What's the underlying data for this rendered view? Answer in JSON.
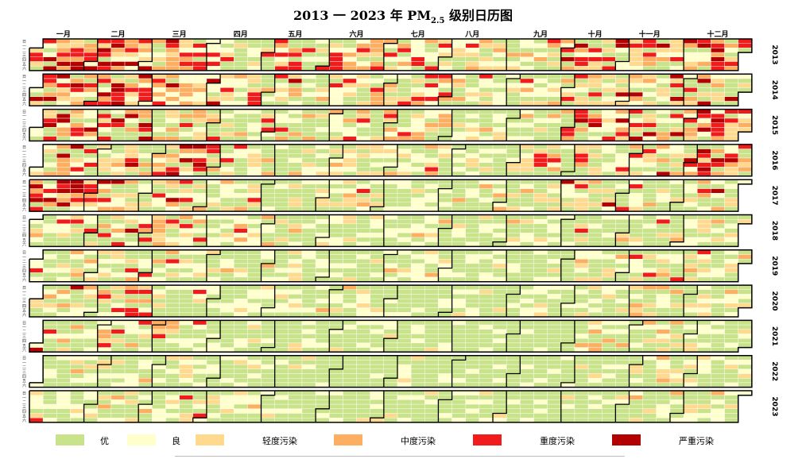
{
  "title": {
    "prefix": "2013 一 2023 年 PM",
    "subscript": "2.5",
    "suffix": " 级别日历图"
  },
  "chart_data": {
    "type": "heatmap",
    "title": "2013 一 2023 年 PM2.5 级别日历图",
    "xlabel": "",
    "ylabel": "",
    "months": [
      "一月",
      "二月",
      "三月",
      "四月",
      "五月",
      "六月",
      "七月",
      "八月",
      "九月",
      "十月",
      "十一月",
      "十二月"
    ],
    "weekday_labels": [
      "日",
      "一",
      "二",
      "三",
      "四",
      "五",
      "六"
    ],
    "years": [
      "2013",
      "2014",
      "2015",
      "2016",
      "2017",
      "2018",
      "2019",
      "2020",
      "2021",
      "2022",
      "2023"
    ],
    "grid": "weeks x weekdays per year",
    "categories": [
      "优",
      "良",
      "轻度污染",
      "中度污染",
      "重度污染",
      "严重污染"
    ],
    "colors": [
      "#c9e38a",
      "#ffffcc",
      "#fed98e",
      "#fdae61",
      "#f21b1b",
      "#b30000"
    ],
    "border_color": "#000000",
    "cell_line_color": "#ffffff",
    "monthly_level_weights": {
      "2013": [
        [
          8,
          10,
          20,
          22,
          22,
          18
        ],
        [
          10,
          12,
          18,
          18,
          22,
          14
        ],
        [
          15,
          15,
          18,
          18,
          18,
          10
        ],
        [
          40,
          25,
          15,
          8,
          8,
          2
        ],
        [
          30,
          25,
          15,
          12,
          12,
          2
        ],
        [
          15,
          20,
          20,
          25,
          15,
          2
        ],
        [
          30,
          25,
          20,
          15,
          10,
          0
        ],
        [
          35,
          30,
          20,
          10,
          5,
          0
        ],
        [
          40,
          25,
          20,
          10,
          5,
          0
        ],
        [
          25,
          20,
          20,
          12,
          15,
          8
        ],
        [
          20,
          25,
          20,
          12,
          15,
          5
        ],
        [
          15,
          20,
          25,
          18,
          15,
          5
        ]
      ],
      "2014": [
        [
          15,
          15,
          20,
          20,
          15,
          12
        ],
        [
          10,
          10,
          15,
          20,
          20,
          20
        ],
        [
          15,
          20,
          20,
          20,
          15,
          8
        ],
        [
          30,
          25,
          20,
          15,
          8,
          2
        ],
        [
          40,
          25,
          15,
          12,
          7,
          1
        ],
        [
          35,
          25,
          18,
          14,
          8,
          0
        ],
        [
          25,
          25,
          20,
          15,
          12,
          3
        ],
        [
          45,
          25,
          20,
          7,
          3,
          0
        ],
        [
          40,
          30,
          18,
          8,
          4,
          0
        ],
        [
          20,
          20,
          18,
          15,
          15,
          12
        ],
        [
          25,
          20,
          20,
          15,
          12,
          8
        ],
        [
          40,
          20,
          15,
          10,
          10,
          5
        ]
      ],
      "2015": [
        [
          20,
          20,
          20,
          15,
          15,
          10
        ],
        [
          35,
          20,
          15,
          12,
          12,
          6
        ],
        [
          25,
          25,
          20,
          15,
          12,
          3
        ],
        [
          40,
          30,
          15,
          10,
          5,
          0
        ],
        [
          55,
          25,
          10,
          7,
          3,
          0
        ],
        [
          35,
          25,
          20,
          12,
          8,
          0
        ],
        [
          35,
          30,
          18,
          12,
          5,
          0
        ],
        [
          55,
          30,
          10,
          5,
          0,
          0
        ],
        [
          55,
          25,
          12,
          6,
          2,
          0
        ],
        [
          30,
          25,
          15,
          12,
          12,
          6
        ],
        [
          35,
          20,
          15,
          10,
          12,
          8
        ],
        [
          15,
          15,
          15,
          15,
          20,
          20
        ]
      ],
      "2016": [
        [
          25,
          20,
          20,
          15,
          12,
          8
        ],
        [
          40,
          25,
          15,
          10,
          8,
          2
        ],
        [
          25,
          20,
          15,
          15,
          15,
          10
        ],
        [
          45,
          25,
          15,
          10,
          5,
          0
        ],
        [
          55,
          25,
          12,
          6,
          2,
          0
        ],
        [
          45,
          25,
          15,
          10,
          5,
          0
        ],
        [
          40,
          30,
          15,
          10,
          5,
          0
        ],
        [
          55,
          30,
          10,
          5,
          0,
          0
        ],
        [
          45,
          30,
          15,
          7,
          3,
          0
        ],
        [
          40,
          25,
          15,
          8,
          8,
          4
        ],
        [
          30,
          25,
          15,
          10,
          12,
          8
        ],
        [
          20,
          15,
          15,
          15,
          18,
          17
        ]
      ],
      "2017": [
        [
          15,
          15,
          15,
          15,
          20,
          20
        ],
        [
          35,
          25,
          15,
          10,
          10,
          5
        ],
        [
          40,
          25,
          15,
          10,
          8,
          2
        ],
        [
          55,
          25,
          12,
          6,
          2,
          0
        ],
        [
          60,
          25,
          10,
          5,
          0,
          0
        ],
        [
          50,
          25,
          15,
          8,
          2,
          0
        ],
        [
          50,
          30,
          12,
          6,
          2,
          0
        ],
        [
          65,
          25,
          8,
          2,
          0,
          0
        ],
        [
          55,
          30,
          10,
          5,
          0,
          0
        ],
        [
          55,
          20,
          12,
          6,
          5,
          2
        ],
        [
          50,
          25,
          12,
          7,
          5,
          1
        ],
        [
          55,
          20,
          12,
          8,
          4,
          1
        ]
      ],
      "2018": [
        [
          50,
          25,
          12,
          8,
          4,
          1
        ],
        [
          40,
          25,
          15,
          10,
          8,
          2
        ],
        [
          35,
          25,
          15,
          12,
          10,
          3
        ],
        [
          50,
          30,
          12,
          6,
          2,
          0
        ],
        [
          60,
          25,
          10,
          5,
          0,
          0
        ],
        [
          55,
          30,
          10,
          5,
          0,
          0
        ],
        [
          55,
          30,
          10,
          5,
          0,
          0
        ],
        [
          65,
          25,
          8,
          2,
          0,
          0
        ],
        [
          65,
          25,
          8,
          2,
          0,
          0
        ],
        [
          55,
          25,
          12,
          5,
          3,
          0
        ],
        [
          45,
          25,
          12,
          8,
          8,
          2
        ],
        [
          55,
          25,
          12,
          6,
          2,
          0
        ]
      ],
      "2019": [
        [
          40,
          25,
          15,
          10,
          8,
          2
        ],
        [
          45,
          25,
          15,
          8,
          5,
          2
        ],
        [
          45,
          30,
          15,
          7,
          3,
          0
        ],
        [
          60,
          25,
          10,
          5,
          0,
          0
        ],
        [
          65,
          25,
          8,
          2,
          0,
          0
        ],
        [
          65,
          25,
          8,
          2,
          0,
          0
        ],
        [
          60,
          30,
          8,
          2,
          0,
          0
        ],
        [
          70,
          25,
          5,
          0,
          0,
          0
        ],
        [
          65,
          25,
          8,
          2,
          0,
          0
        ],
        [
          55,
          25,
          12,
          5,
          3,
          0
        ],
        [
          55,
          25,
          12,
          5,
          3,
          0
        ],
        [
          50,
          25,
          12,
          8,
          5,
          0
        ]
      ],
      "2020": [
        [
          40,
          20,
          15,
          10,
          10,
          5
        ],
        [
          40,
          20,
          15,
          10,
          12,
          3
        ],
        [
          55,
          25,
          12,
          6,
          2,
          0
        ],
        [
          60,
          25,
          10,
          5,
          0,
          0
        ],
        [
          70,
          20,
          8,
          2,
          0,
          0
        ],
        [
          65,
          25,
          8,
          2,
          0,
          0
        ],
        [
          70,
          25,
          5,
          0,
          0,
          0
        ],
        [
          70,
          25,
          5,
          0,
          0,
          0
        ],
        [
          70,
          25,
          5,
          0,
          0,
          0
        ],
        [
          55,
          30,
          10,
          5,
          0,
          0
        ],
        [
          50,
          25,
          15,
          8,
          2,
          0
        ],
        [
          55,
          25,
          12,
          6,
          2,
          0
        ]
      ],
      "2021": [
        [
          50,
          25,
          10,
          8,
          6,
          1
        ],
        [
          40,
          20,
          15,
          10,
          12,
          3
        ],
        [
          40,
          20,
          15,
          12,
          10,
          3
        ],
        [
          65,
          25,
          8,
          2,
          0,
          0
        ],
        [
          75,
          20,
          5,
          0,
          0,
          0
        ],
        [
          75,
          20,
          5,
          0,
          0,
          0
        ],
        [
          80,
          15,
          5,
          0,
          0,
          0
        ],
        [
          85,
          15,
          0,
          0,
          0,
          0
        ],
        [
          85,
          15,
          0,
          0,
          0,
          0
        ],
        [
          60,
          25,
          10,
          5,
          0,
          0
        ],
        [
          55,
          25,
          12,
          8,
          0,
          0
        ],
        [
          60,
          25,
          10,
          5,
          0,
          0
        ]
      ],
      "2022": [
        [
          60,
          25,
          10,
          5,
          0,
          0
        ],
        [
          65,
          25,
          8,
          2,
          0,
          0
        ],
        [
          60,
          30,
          8,
          2,
          0,
          0
        ],
        [
          75,
          20,
          5,
          0,
          0,
          0
        ],
        [
          80,
          15,
          5,
          0,
          0,
          0
        ],
        [
          80,
          15,
          5,
          0,
          0,
          0
        ],
        [
          80,
          15,
          5,
          0,
          0,
          0
        ],
        [
          85,
          15,
          0,
          0,
          0,
          0
        ],
        [
          80,
          15,
          5,
          0,
          0,
          0
        ],
        [
          70,
          25,
          5,
          0,
          0,
          0
        ],
        [
          55,
          30,
          10,
          5,
          0,
          0
        ],
        [
          60,
          30,
          8,
          2,
          0,
          0
        ]
      ],
      "2023": [
        [
          50,
          30,
          12,
          6,
          2,
          0
        ],
        [
          55,
          25,
          12,
          6,
          2,
          0
        ],
        [
          55,
          25,
          12,
          6,
          2,
          0
        ],
        [
          60,
          25,
          10,
          5,
          0,
          0
        ],
        [
          75,
          20,
          5,
          0,
          0,
          0
        ],
        [
          75,
          20,
          5,
          0,
          0,
          0
        ],
        [
          75,
          20,
          5,
          0,
          0,
          0
        ],
        [
          80,
          15,
          5,
          0,
          0,
          0
        ],
        [
          75,
          20,
          5,
          0,
          0,
          0
        ],
        [
          65,
          25,
          8,
          2,
          0,
          0
        ],
        [
          55,
          25,
          12,
          8,
          0,
          0
        ],
        [
          55,
          25,
          12,
          8,
          0,
          0
        ]
      ]
    }
  },
  "legend": [
    {
      "label": "优",
      "color": "#c9e38a"
    },
    {
      "label": "良",
      "color": "#ffffcc"
    },
    {
      "label": "轻度污染",
      "color": "#fed98e"
    },
    {
      "label": "中度污染",
      "color": "#fdae61"
    },
    {
      "label": "重度污染",
      "color": "#f21b1b"
    },
    {
      "label": "严重污染",
      "color": "#b30000"
    }
  ]
}
